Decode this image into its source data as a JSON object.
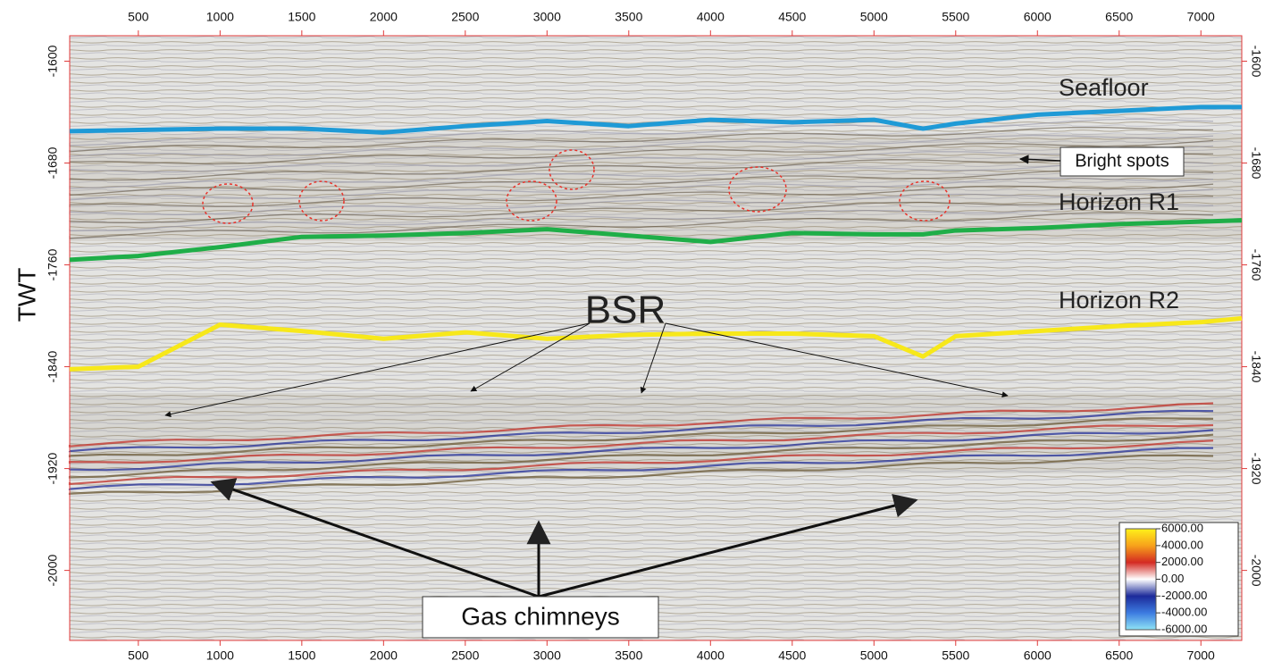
{
  "chart_data": {
    "type": "line",
    "y_label": "TWT",
    "x": [
      80,
      500,
      1000,
      1500,
      2000,
      2500,
      3000,
      3500,
      4000,
      4500,
      5000,
      5300,
      5500,
      6000,
      6500,
      7000,
      7250
    ],
    "series": [
      {
        "name": "Seafloor",
        "color": "#1f9ad6",
        "values": [
          -1655,
          -1654,
          -1653,
          -1653,
          -1656,
          -1651,
          -1647,
          -1651,
          -1646,
          -1648,
          -1646,
          -1653,
          -1649,
          -1642,
          -1639,
          -1636,
          -1636
        ]
      },
      {
        "name": "Horizon R1",
        "color": "#1fae48",
        "values": [
          -1756,
          -1753,
          -1746,
          -1738,
          -1737,
          -1735,
          -1732,
          -1737,
          -1742,
          -1735,
          -1736,
          -1736,
          -1733,
          -1731,
          -1728,
          -1726,
          -1725
        ]
      },
      {
        "name": "Horizon R2",
        "color": "#f7e81a",
        "values": [
          -1842,
          -1840,
          -1807,
          -1812,
          -1818,
          -1813,
          -1818,
          -1815,
          -1814,
          -1814,
          -1816,
          -1832,
          -1816,
          -1812,
          -1808,
          -1805,
          -1802
        ]
      }
    ],
    "xlim": [
      80,
      7250
    ],
    "ylim": [
      -2055,
      -1580
    ],
    "xticks": [
      500,
      1000,
      1500,
      2000,
      2500,
      3000,
      3500,
      4000,
      4500,
      5000,
      5500,
      6000,
      6500,
      7000
    ],
    "yticks": [
      -1600,
      -1680,
      -1760,
      -1840,
      -1920,
      -2000
    ],
    "annotations": [
      "Bright spots",
      "BSR",
      "Gas chimneys"
    ],
    "colorbar": {
      "colors": [
        "#fff21a",
        "#f7a21b",
        "#d42a22",
        "#ffffff",
        "#1c2a9a",
        "#3c7be0",
        "#8fe3f5"
      ],
      "ticks": [
        {
          "value": 6000,
          "label": "6000.00"
        },
        {
          "value": 4000,
          "label": "4000.00"
        },
        {
          "value": 2000,
          "label": "2000.00"
        },
        {
          "value": 0,
          "label": "0.00"
        },
        {
          "value": -2000,
          "label": "-2000.00"
        },
        {
          "value": -4000,
          "label": "-4000.00"
        },
        {
          "value": -6000,
          "label": "-6000.00"
        }
      ]
    }
  }
}
